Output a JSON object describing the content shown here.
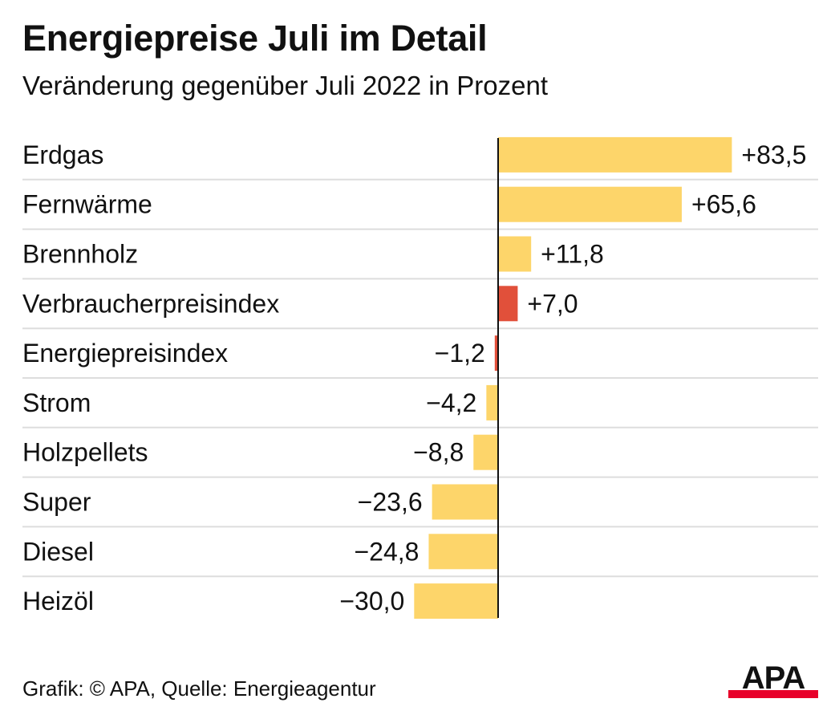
{
  "header": {
    "title": "Energiepreise Juli im Detail",
    "subtitle": "Veränderung gegenüber Juli 2022 in Prozent"
  },
  "footer": {
    "credit": "Grafik: © APA, Quelle: Energieagentur"
  },
  "logo": {
    "text": "APA",
    "color": "#111111",
    "accent": "#e8002a"
  },
  "colors": {
    "bar_default": "#fdd56a",
    "bar_highlight": "#e1503a",
    "axis": "#111111",
    "row_separator": "#dddddd"
  },
  "chart_data": {
    "type": "bar",
    "orientation": "horizontal",
    "title": "Energiepreise Juli im Detail",
    "subtitle": "Veränderung gegenüber Juli 2022 in Prozent",
    "categories": [
      "Erdgas",
      "Fernwärme",
      "Brennholz",
      "Verbraucherpreisindex",
      "Energiepreisindex",
      "Strom",
      "Holzpellets",
      "Super",
      "Diesel",
      "Heizöl"
    ],
    "values": [
      83.5,
      65.6,
      11.8,
      7.0,
      -1.2,
      -4.2,
      -8.8,
      -23.6,
      -24.8,
      -30.0
    ],
    "labels": [
      "+83,5",
      "+65,6",
      "+11,8",
      "+7,0",
      "−1,2",
      "−4,2",
      "−8,8",
      "−23,6",
      "−24,8",
      "−30,0"
    ],
    "highlighted": [
      "Verbraucherpreisindex",
      "Energiepreisindex"
    ],
    "grid": false,
    "legend": "none"
  }
}
